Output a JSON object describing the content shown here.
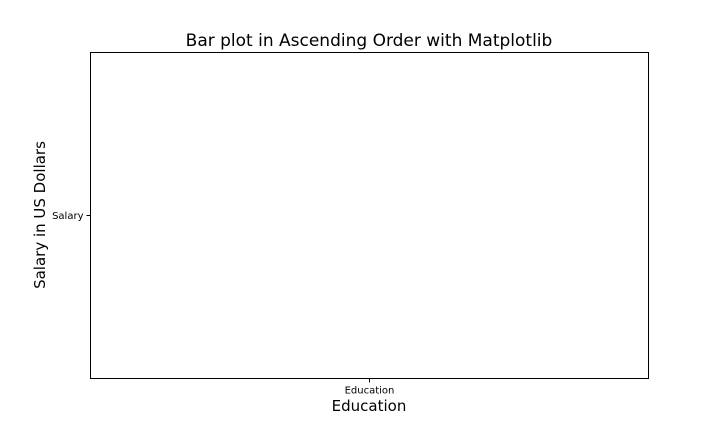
{
  "chart_data": {
    "type": "bar",
    "title": "Bar plot in Ascending Order with Matplotlib",
    "xlabel": "Education",
    "ylabel": "Salary in US Dollars",
    "x_ticks": [
      "Education"
    ],
    "y_ticks": [
      "Salary"
    ],
    "categories": [],
    "values": [],
    "grid": false,
    "legend": "none"
  }
}
